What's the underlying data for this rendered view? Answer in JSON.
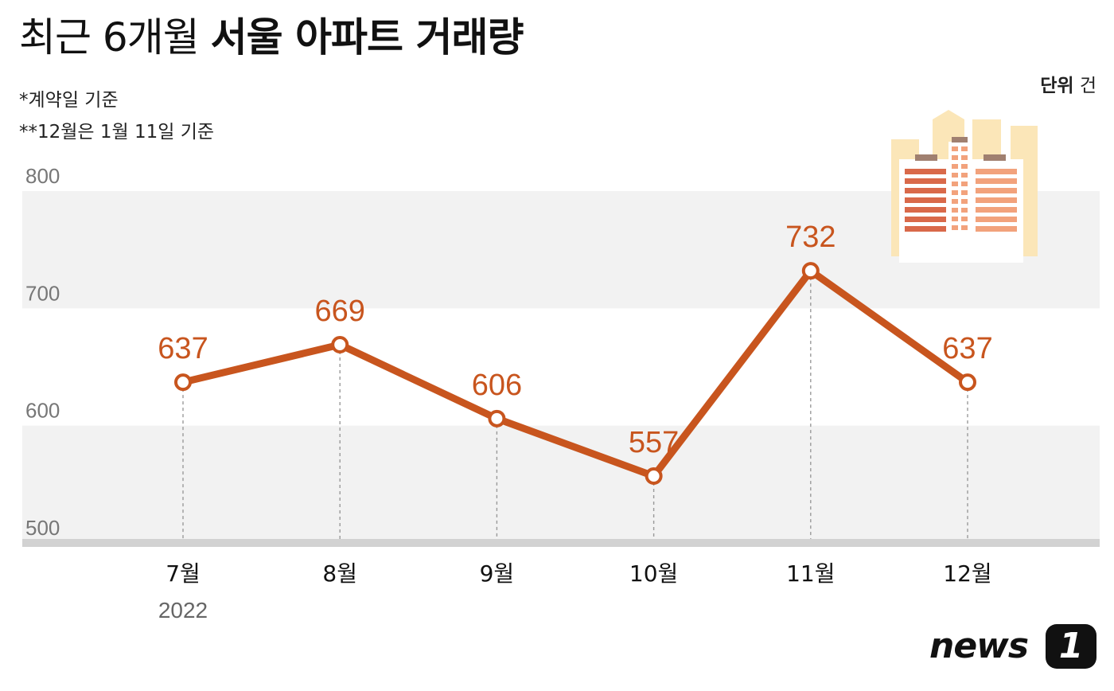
{
  "title": {
    "light": "최근 6개월",
    "bold": "서울 아파트 거래량"
  },
  "notes": [
    "*계약일 기준",
    "**12월은 1월 11일 기준"
  ],
  "unit": {
    "label": "단위",
    "value": "건"
  },
  "colors": {
    "line": "#c8551e",
    "label": "#c8551e",
    "band": "#f2f2f2",
    "baseline": "#d2d2d2",
    "tick": "#777777",
    "building_bg": "#fbe6b8",
    "building_front": "#ffffff",
    "stripe_dark": "#d9694a",
    "stripe_light": "#f2a27c",
    "roof": "#a08070"
  },
  "chart_data": {
    "type": "line",
    "categories": [
      "7월",
      "8월",
      "9월",
      "10월",
      "11월",
      "12월"
    ],
    "x_sublabels": [
      "2022",
      "",
      "",
      "",
      "",
      ""
    ],
    "series": [
      {
        "values": [
          637,
          669,
          606,
          557,
          732,
          637
        ]
      }
    ],
    "data_labels": [
      "637",
      "669",
      "606",
      "557",
      "732",
      "637"
    ],
    "yticks": [
      500,
      600,
      700,
      800
    ],
    "ylim": [
      500,
      800
    ],
    "grid": "alternating horizontal bands",
    "title": "최근 6개월 서울 아파트 거래량"
  },
  "logo": {
    "text": "news",
    "badge": "1"
  },
  "icon": "apartment-buildings-illustration"
}
